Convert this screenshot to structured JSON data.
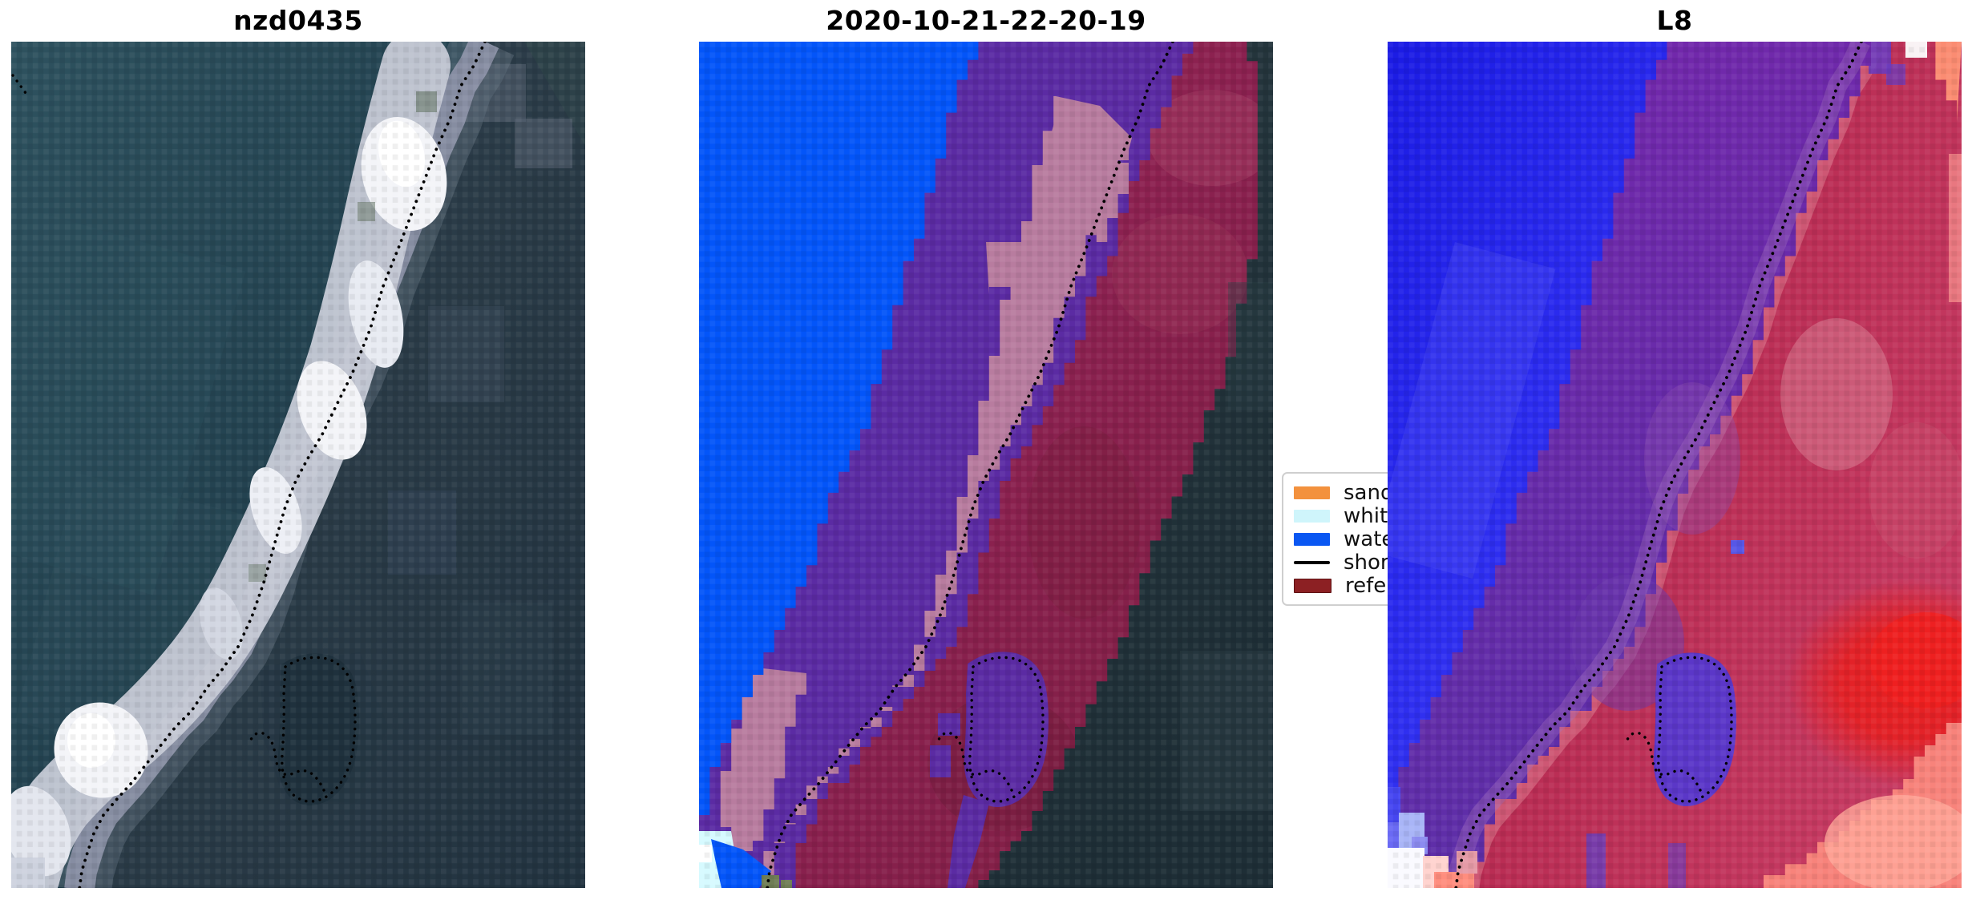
{
  "figure": {
    "background": "#ffffff",
    "description": "Three-panel coastal shoreline detection figure (satellite image, pixel classification, Landsat-8 index image) with a dotted detected shoreline drawn on every panel"
  },
  "panels": [
    {
      "id": "rgb",
      "title": "nzd0435"
    },
    {
      "id": "class",
      "title": "2020-10-21-22-20-19"
    },
    {
      "id": "index",
      "title": "L8"
    }
  ],
  "legend": {
    "items": [
      {
        "label": "sand",
        "type": "patch",
        "color": "#f3913d"
      },
      {
        "label": "whitew",
        "type": "patch",
        "color": "#cff5fb"
      },
      {
        "label": "water",
        "type": "patch",
        "color": "#0a57f2"
      },
      {
        "label": "shorel",
        "type": "line",
        "color": "#000000"
      },
      {
        "label": "referen",
        "type": "patch",
        "color": "#8c2023"
      }
    ]
  },
  "colors": {
    "shoreline": "#000000",
    "panel1": {
      "ocean_light": "#2e525f",
      "ocean_mid": "#22404e",
      "ocean_dark": "#1d3442",
      "land_dark": "#2a3b47",
      "land_mid": "#3c4a5a",
      "inland_gray": "#8e94a8",
      "margin_gray": "#62707f",
      "sand": "#c6cad6",
      "sand_bright": "#f3f4f8",
      "white": "#ffffff",
      "dull_sand": "#d4d8e2",
      "green_tint": "#6f7f72",
      "corner_green": "#2e4349",
      "lagoon": "#1f313d",
      "bay_dark": "#263744"
    },
    "panel2": {
      "water": "#0355f9",
      "purple": "#5b2ba3",
      "pink": "#b87c9f",
      "maroon": "#8b2150",
      "maroon_rose": "#a03a60",
      "maroon_dark": "#6f1b3a",
      "slate": "#22343c",
      "slate_light": "#2b3e46",
      "whitewater": "#d6faff",
      "white": "#ffffff",
      "olive": "#6f7d55"
    },
    "panel3": {
      "blue_deep": "#1b1be4",
      "blue": "#2a2aee",
      "blue_light": "#5555f6",
      "purple_top": "#7627ac",
      "purple_bot": "#5c2fa8",
      "mauve": "#a06cbe",
      "rose_band": "#d4667f",
      "crimson": "#c63a62",
      "crimson_deep": "#b82b52",
      "red_blob": "#e81f1f",
      "salmon": "#f8837b",
      "salmon_light": "#ffa79a",
      "pale_pink": "#ffd3cf",
      "lightblue": "#a9b5f7",
      "white": "#fafaff",
      "lagoon": "#5b37c8",
      "blue_dot": "#5757e7"
    }
  },
  "chart_data": [
    {
      "type": "heatmap",
      "title": "nzd0435",
      "description": "True-colour satellite image: dark teal ocean left, bright white sand barrier spit running diagonally, darker land/water right, dotted black detected shoreline and a dotted loop around a small lagoon"
    },
    {
      "type": "heatmap",
      "title": "2020-10-21-22-20-19",
      "description": "Classified image: bright blue water class upper-left, violet water-in-buffer band, mauve-pink sand class band, dark-red reference shoreline buffer, dark slate unclassified land right, cyan whitewater patch bottom-left, dotted black shoreline",
      "legend_entries": [
        "sand",
        "whitew",
        "water",
        "shorel",
        "referen"
      ]
    },
    {
      "type": "heatmap",
      "title": "L8",
      "description": "Landsat-8 index image with blue-to-red colouring: blue water upper-left, purple transition band, crimson land right with bright red blob and salmon lower-right corner, dotted black shoreline"
    }
  ]
}
